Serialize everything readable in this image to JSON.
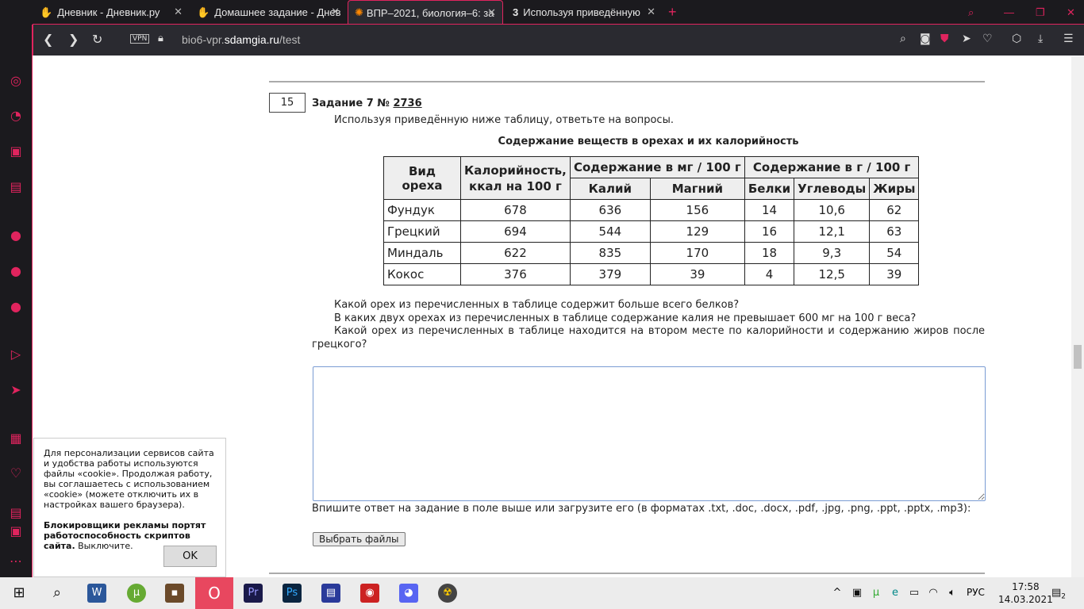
{
  "browser": {
    "tabs": [
      {
        "label": "Дневник - Дневник.ру"
      },
      {
        "label": "Домашнее задание - Днев"
      },
      {
        "label": "ВПР–2021, биология–6: за"
      },
      {
        "label": "Используя приведённую"
      }
    ],
    "url_prefix": "bio6-vpr.",
    "url_domain": "sdamgia.ru",
    "url_path": "/test",
    "vpn": "VPN"
  },
  "task": {
    "number": "15",
    "title": "Задание 7 № ",
    "id": "2736",
    "intro": "Используя приведённую ниже таблицу, ответьте на вопросы.",
    "table_caption": "Содержание веществ в орехах и их калорийность",
    "headers": {
      "kind": "Вид ореха",
      "cal": "Калорийность, ккал на 100 г",
      "mg": "Содержание в мг / 100 г",
      "g": "Содержание в г / 100 г",
      "k": "Калий",
      "mgn": "Магний",
      "prot": "Белки",
      "carb": "Углеводы",
      "fat": "Жиры"
    },
    "rows": [
      [
        "Фундук",
        "678",
        "636",
        "156",
        "14",
        "10,6",
        "62"
      ],
      [
        "Грецкий",
        "694",
        "544",
        "129",
        "16",
        "12,1",
        "63"
      ],
      [
        "Миндаль",
        "622",
        "835",
        "170",
        "18",
        "9,3",
        "54"
      ],
      [
        "Кокос",
        "376",
        "379",
        "39",
        "4",
        "12,5",
        "39"
      ]
    ],
    "questions": [
      "Какой орех из перечисленных в таблице содержит больше всего белков?",
      "В каких двух орехах из перечисленных в таблице содержание калия не превышает 600 мг на 100 г веса?",
      "Какой орех из перечисленных в таблице находится на втором месте по калорийности и содержанию жиров после грецкого?"
    ],
    "answer_value": "",
    "hint": "Впишите ответ на задание в поле выше или загрузите его (в форматах .txt, .doc, .docx, .pdf, .jpg, .png, .ppt, .pptx, .mp3):",
    "file_button": "Выбрать файлы"
  },
  "cookie": {
    "text": "Для персонализации сервисов сайта и удобства работы используются файлы «cookie». Продолжая работу, вы соглашаетесь с использованием «cookie» (можете отключить их в настройках вашего браузера).",
    "bold": "Блокировщики рекламы портят работоспособность скриптов сайта.",
    "tail": " Выключите.",
    "ok": "OK"
  },
  "taskbar": {
    "lang": "РУС",
    "time": "17:58",
    "date": "14.03.2021",
    "notifications": "2"
  }
}
